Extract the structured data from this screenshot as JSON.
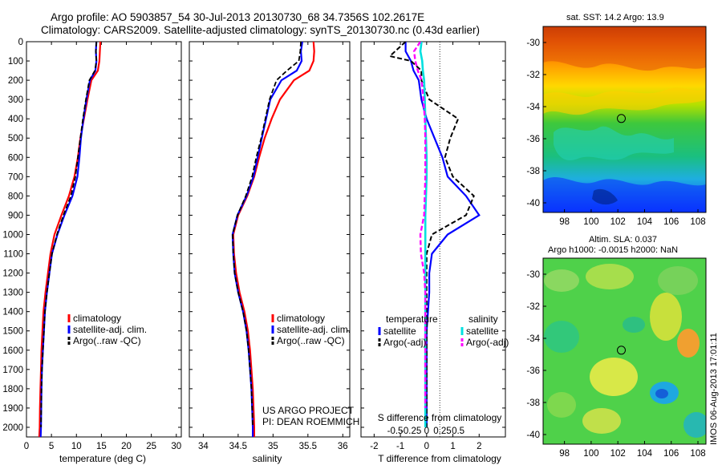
{
  "header": {
    "line1": "Argo profile: AO 5903857_54 30-Jul-2013 20130730_68 34.7356S 102.2617E",
    "line2": "Climatology: CARS2009. Satellite-adjusted climatology: synTS_20130730.nc (0.43d earlier)"
  },
  "colors": {
    "climatology": "#ff0000",
    "satellite": "#0000ff",
    "argo": "#000000",
    "salinity_satellite": "#00e0e0",
    "salinity_argo": "#ff00ff"
  },
  "credit": {
    "line1": "US ARGO PROJECT",
    "line2": "PI: DEAN ROEMMICH",
    "vertical": "IMOS 06-Aug-2013 17:01:11"
  },
  "sst_map": {
    "title": "sat. SST: 14.2 Argo: 13.9",
    "lat_ticks": [
      "-30",
      "-32",
      "-34",
      "-36",
      "-38",
      "-40"
    ],
    "lon_ticks": [
      "98",
      "100",
      "102",
      "104",
      "106",
      "108"
    ],
    "argo_position": {
      "lon": 102.26,
      "lat": -34.74
    }
  },
  "sla_map": {
    "title1": "Altim. SLA: 0.037",
    "title2": "Argo h1000: -0.0015 h2000: NaN",
    "lat_ticks": [
      "-30",
      "-32",
      "-34",
      "-36",
      "-38",
      "-40"
    ],
    "lon_ticks": [
      "98",
      "100",
      "102",
      "104",
      "106",
      "108"
    ],
    "argo_position": {
      "lon": 102.26,
      "lat": -34.74
    }
  },
  "chart_data": [
    {
      "type": "line",
      "xlabel": "temperature (deg C)",
      "ylabel": "",
      "xlim": [
        0,
        31
      ],
      "ylim": [
        2050,
        0
      ],
      "x_ticks": [
        "0",
        "5",
        "10",
        "15",
        "20",
        "25",
        "30"
      ],
      "y_ticks": [
        "0",
        "100",
        "200",
        "300",
        "400",
        "500",
        "600",
        "700",
        "800",
        "900",
        "1000",
        "1100",
        "1200",
        "1300",
        "1400",
        "1500",
        "1600",
        "1700",
        "1800",
        "1900",
        "2000"
      ],
      "legend": [
        "climatology",
        "satellite-adj. clim.",
        "Argo(..raw -QC)"
      ],
      "series": [
        {
          "name": "climatology",
          "x": [
            14.8,
            14.7,
            14.6,
            14.3,
            13.0,
            12.2,
            11.5,
            10.8,
            10.3,
            9.6,
            8.5,
            7.0,
            5.6,
            4.8,
            4.3,
            3.8,
            3.4,
            3.2,
            3.0,
            2.9,
            2.8,
            2.7,
            2.65,
            2.55
          ],
          "y": [
            0,
            50,
            100,
            150,
            200,
            300,
            400,
            500,
            600,
            700,
            800,
            900,
            1000,
            1100,
            1200,
            1300,
            1400,
            1500,
            1600,
            1700,
            1800,
            1900,
            2000,
            2050
          ]
        },
        {
          "name": "satellite-adj. clim.",
          "x": [
            14.0,
            13.9,
            14.0,
            13.8,
            12.7,
            12.0,
            11.4,
            10.9,
            10.6,
            10.2,
            9.2,
            7.6,
            6.2,
            5.1,
            4.6,
            4.1,
            3.7,
            3.5,
            3.3,
            3.1,
            3.0,
            2.95,
            2.9,
            2.85
          ],
          "y": [
            0,
            50,
            100,
            150,
            200,
            300,
            400,
            500,
            600,
            700,
            800,
            900,
            1000,
            1100,
            1200,
            1300,
            1400,
            1500,
            1600,
            1700,
            1800,
            1900,
            2000,
            2050
          ]
        },
        {
          "name": "Argo(..raw -QC)",
          "x": [
            14.0,
            13.9,
            14.0,
            13.7,
            12.6,
            11.9,
            11.3,
            10.8,
            10.3,
            9.8,
            8.9,
            7.4,
            6.1,
            5.1,
            4.6,
            4.1,
            3.7,
            3.5,
            3.3,
            3.1,
            3.0,
            2.95,
            2.9
          ],
          "y": [
            0,
            50,
            100,
            150,
            200,
            300,
            400,
            500,
            600,
            700,
            800,
            900,
            1000,
            1100,
            1200,
            1300,
            1400,
            1500,
            1600,
            1700,
            1800,
            1900,
            2000
          ]
        }
      ]
    },
    {
      "type": "line",
      "xlabel": "salinity",
      "ylabel": "",
      "xlim": [
        33.8,
        36.1
      ],
      "ylim": [
        2050,
        0
      ],
      "x_ticks": [
        "34",
        "34.5",
        "35",
        "35.5",
        "36"
      ],
      "legend": [
        "climatology",
        "satellite-adj. clim.",
        "Argo(..raw -QC)"
      ],
      "series": [
        {
          "name": "climatology",
          "x": [
            35.58,
            35.59,
            35.58,
            35.52,
            35.3,
            35.1,
            34.98,
            34.88,
            34.8,
            34.73,
            34.63,
            34.5,
            34.43,
            34.44,
            34.47,
            34.52,
            34.59,
            34.64,
            34.67,
            34.69,
            34.71,
            34.72,
            34.73,
            34.73
          ],
          "y": [
            0,
            50,
            100,
            150,
            200,
            300,
            400,
            500,
            600,
            700,
            800,
            900,
            1000,
            1100,
            1200,
            1300,
            1400,
            1500,
            1600,
            1700,
            1800,
            1900,
            2000,
            2050
          ]
        },
        {
          "name": "satellite-adj. clim.",
          "x": [
            35.42,
            35.4,
            35.41,
            35.34,
            35.12,
            34.96,
            34.9,
            34.84,
            34.78,
            34.72,
            34.62,
            34.49,
            34.42,
            34.43,
            34.45,
            34.5,
            34.57,
            34.62,
            34.65,
            34.67,
            34.69,
            34.7,
            34.71,
            34.71
          ],
          "y": [
            0,
            50,
            100,
            150,
            200,
            300,
            400,
            500,
            600,
            700,
            800,
            900,
            1000,
            1100,
            1200,
            1300,
            1400,
            1500,
            1600,
            1700,
            1800,
            1900,
            2000,
            2050
          ]
        },
        {
          "name": "Argo(..raw -QC)",
          "x": [
            35.4,
            35.39,
            35.37,
            35.2,
            35.05,
            34.95,
            34.89,
            34.83,
            34.76,
            34.7,
            34.61,
            34.49,
            34.42,
            34.43,
            34.45,
            34.5,
            34.57,
            34.62,
            34.65,
            34.67,
            34.69,
            34.7,
            34.71
          ],
          "y": [
            0,
            50,
            100,
            150,
            200,
            300,
            400,
            500,
            600,
            700,
            800,
            900,
            1000,
            1100,
            1200,
            1300,
            1400,
            1500,
            1600,
            1700,
            1800,
            1900,
            2000
          ]
        }
      ]
    },
    {
      "type": "line",
      "xlabel": "T difference from climatology",
      "xlabel_top": "S difference from climatology",
      "xlim": [
        -2.5,
        3.0
      ],
      "ylim": [
        2050,
        0
      ],
      "x_ticks": [
        "-2",
        "-1",
        "0",
        "1",
        "2"
      ],
      "x_ticks_salinity": [
        "-0.5",
        "-0.25",
        "0",
        "0.25",
        "0.5"
      ],
      "legend_titles": [
        "temperature",
        "salinity"
      ],
      "legend": [
        "satellite",
        "Argo(-adj)",
        "satellite",
        "Argo(-adj)"
      ],
      "series": [
        {
          "name": "satellite",
          "quantity": "temperature",
          "x": [
            -0.8,
            -0.8,
            -0.6,
            -0.5,
            -0.3,
            -0.2,
            0.0,
            0.3,
            0.6,
            0.8,
            1.5,
            2.0,
            0.8,
            0.2,
            0.1,
            0.1,
            0.05,
            0.0,
            0.0,
            0.0,
            0.0,
            0.0,
            0.0
          ],
          "y": [
            0,
            50,
            100,
            150,
            200,
            300,
            400,
            500,
            600,
            700,
            800,
            900,
            1000,
            1100,
            1200,
            1300,
            1400,
            1500,
            1600,
            1700,
            1800,
            1900,
            2000
          ]
        },
        {
          "name": "Argo(-adj)",
          "quantity": "temperature",
          "x": [
            -0.8,
            -1.4,
            -0.6,
            -0.2,
            -0.2,
            0.1,
            1.2,
            0.9,
            0.7,
            1.0,
            1.8,
            1.5,
            0.2,
            0.0,
            0.0,
            0.0,
            0.0,
            0.0,
            0.0,
            0.0,
            0.0,
            0.0,
            0.0
          ],
          "y": [
            0,
            75,
            100,
            150,
            200,
            300,
            400,
            500,
            600,
            700,
            800,
            900,
            1000,
            1100,
            1200,
            1300,
            1400,
            1500,
            1600,
            1700,
            1800,
            1900,
            2000
          ]
        },
        {
          "name": "satellite",
          "quantity": "salinity",
          "x": [
            -0.08,
            -0.1,
            -0.07,
            -0.06,
            -0.04,
            -0.03,
            -0.02,
            -0.01,
            0.0,
            0.0,
            -0.01,
            -0.02,
            -0.02,
            -0.02,
            -0.02,
            -0.02,
            -0.02,
            -0.02,
            -0.02,
            -0.02,
            -0.02,
            -0.02,
            -0.02
          ],
          "y": [
            0,
            50,
            100,
            150,
            200,
            300,
            400,
            500,
            600,
            700,
            800,
            900,
            1000,
            1100,
            1200,
            1300,
            1400,
            1500,
            1600,
            1700,
            1800,
            1900,
            2000
          ]
        },
        {
          "name": "Argo(-adj)",
          "quantity": "salinity",
          "x": [
            -0.1,
            -0.2,
            -0.18,
            -0.14,
            -0.08,
            -0.05,
            -0.03,
            -0.02,
            -0.02,
            -0.02,
            -0.03,
            -0.04,
            -0.1,
            -0.09,
            -0.04,
            -0.02,
            -0.02,
            -0.02,
            -0.02,
            -0.02,
            -0.02,
            -0.02
          ],
          "y": [
            0,
            50,
            100,
            150,
            200,
            300,
            400,
            500,
            600,
            700,
            800,
            900,
            1000,
            1100,
            1200,
            1300,
            1400,
            1500,
            1600,
            1700,
            1800,
            1900
          ]
        }
      ]
    }
  ]
}
